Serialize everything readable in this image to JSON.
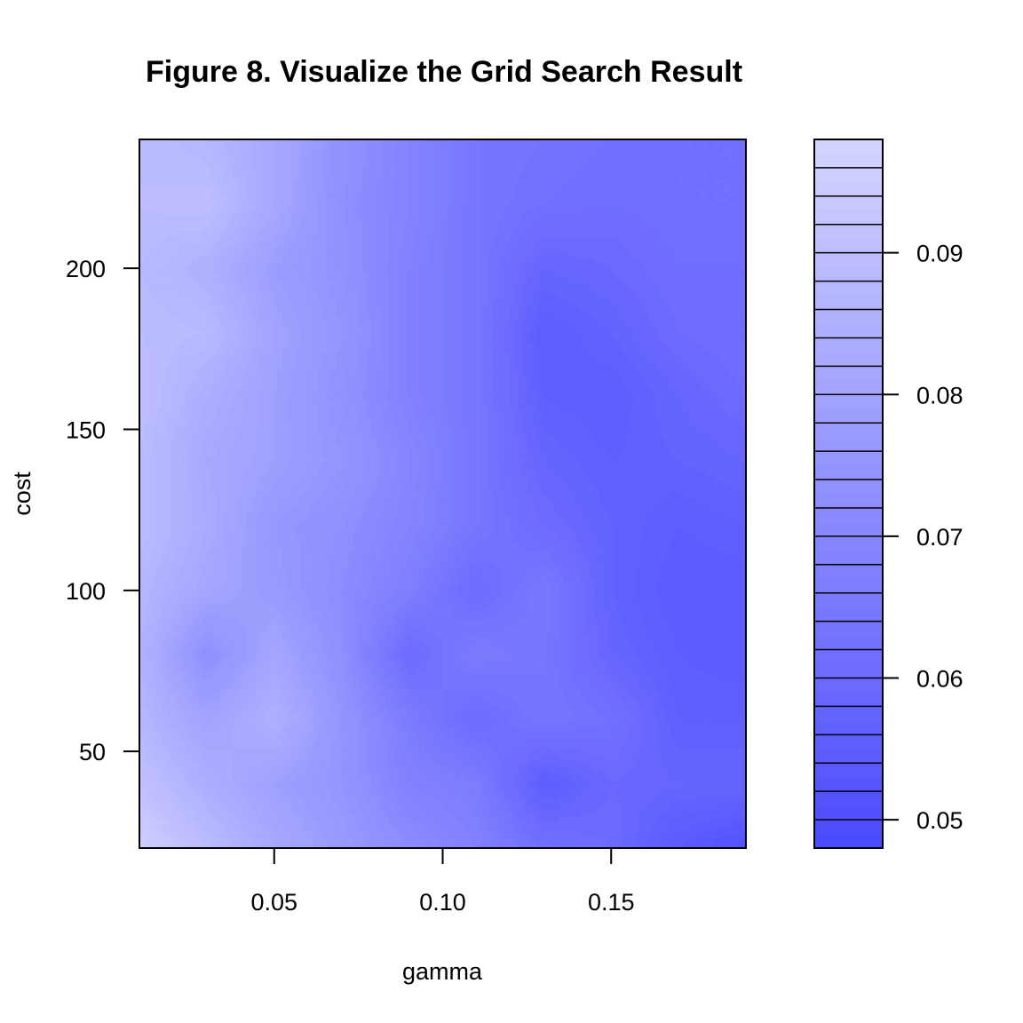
{
  "chart_data": {
    "type": "heatmap",
    "title": "Figure 8. Visualize the Grid Search Result",
    "xlabel": "gamma",
    "ylabel": "cost",
    "x": [
      0.01,
      0.03,
      0.05,
      0.07,
      0.09,
      0.11,
      0.13,
      0.15,
      0.17,
      0.19
    ],
    "y": [
      20,
      40,
      60,
      80,
      100,
      120,
      140,
      160,
      180,
      200,
      220,
      240
    ],
    "z": [
      [
        0.096,
        0.089,
        0.082,
        0.077,
        0.072,
        0.068,
        0.062,
        0.06,
        0.054,
        0.051
      ],
      [
        0.091,
        0.084,
        0.079,
        0.075,
        0.068,
        0.066,
        0.055,
        0.059,
        0.058,
        0.058
      ],
      [
        0.087,
        0.08,
        0.085,
        0.075,
        0.066,
        0.06,
        0.064,
        0.062,
        0.056,
        0.056
      ],
      [
        0.086,
        0.073,
        0.081,
        0.073,
        0.06,
        0.066,
        0.064,
        0.058,
        0.055,
        0.054
      ],
      [
        0.087,
        0.081,
        0.077,
        0.072,
        0.067,
        0.06,
        0.065,
        0.057,
        0.054,
        0.054
      ],
      [
        0.089,
        0.083,
        0.076,
        0.073,
        0.069,
        0.064,
        0.06,
        0.057,
        0.055,
        0.056
      ],
      [
        0.089,
        0.082,
        0.079,
        0.075,
        0.07,
        0.064,
        0.058,
        0.056,
        0.057,
        0.058
      ],
      [
        0.09,
        0.084,
        0.079,
        0.074,
        0.068,
        0.064,
        0.056,
        0.055,
        0.058,
        0.06
      ],
      [
        0.089,
        0.088,
        0.08,
        0.075,
        0.068,
        0.064,
        0.055,
        0.057,
        0.06,
        0.061
      ],
      [
        0.088,
        0.085,
        0.078,
        0.074,
        0.068,
        0.064,
        0.058,
        0.059,
        0.061,
        0.061
      ],
      [
        0.089,
        0.09,
        0.082,
        0.073,
        0.069,
        0.064,
        0.062,
        0.061,
        0.062,
        0.062
      ],
      [
        0.089,
        0.087,
        0.082,
        0.074,
        0.069,
        0.064,
        0.063,
        0.062,
        0.062,
        0.062
      ]
    ],
    "xlim": [
      0.01,
      0.19
    ],
    "ylim": [
      20,
      240
    ],
    "x_ticks": [
      "0.05",
      "0.10",
      "0.15"
    ],
    "y_ticks": [
      "50",
      "100",
      "150",
      "200"
    ],
    "levels": [
      0.048,
      0.049,
      0.05,
      0.051,
      0.052,
      0.053,
      0.054,
      0.055,
      0.056,
      0.057,
      0.058,
      0.059,
      0.06,
      0.061,
      0.062,
      0.063,
      0.064,
      0.065,
      0.066,
      0.067,
      0.068,
      0.069,
      0.07,
      0.071,
      0.072,
      0.073,
      0.074,
      0.075,
      0.076,
      0.077,
      0.078,
      0.079,
      0.08,
      0.081,
      0.082,
      0.083,
      0.084,
      0.085,
      0.086,
      0.087,
      0.088,
      0.089,
      0.09,
      0.091,
      0.092,
      0.093,
      0.094,
      0.095,
      0.096,
      0.097,
      0.098
    ],
    "legend_ticks": [
      "0.05",
      "0.06",
      "0.07",
      "0.08",
      "0.09"
    ],
    "legend_placement": "right",
    "grid": false,
    "colors": {
      "low": "#4a4aff",
      "high": "#d4d4ff"
    }
  }
}
